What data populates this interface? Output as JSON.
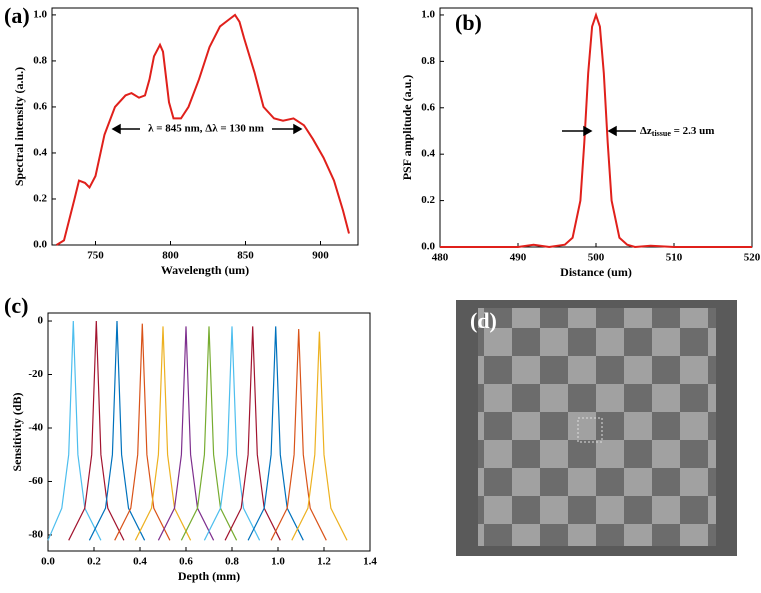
{
  "chart_data": [
    {
      "type": "line",
      "label": "(a)",
      "xlabel": "Wavelength (um)",
      "ylabel": "Spectral intensity (a.u.)",
      "color": "#e0201b",
      "annotation": "λ = 845 nm, Δλ = 130 nm",
      "x": [
        724,
        729,
        736,
        739,
        743,
        746,
        750,
        756,
        763,
        770,
        774,
        779,
        783,
        786,
        789,
        793,
        795,
        799,
        802,
        807,
        812,
        819,
        826,
        833,
        839,
        843,
        846,
        849,
        856,
        862,
        869,
        875,
        882,
        889,
        895,
        902,
        909,
        915,
        919
      ],
      "values": [
        0,
        0.02,
        0.2,
        0.28,
        0.27,
        0.25,
        0.3,
        0.48,
        0.6,
        0.65,
        0.66,
        0.64,
        0.65,
        0.72,
        0.82,
        0.87,
        0.84,
        0.62,
        0.55,
        0.55,
        0.6,
        0.72,
        0.86,
        0.95,
        0.98,
        1.0,
        0.97,
        0.9,
        0.75,
        0.6,
        0.55,
        0.54,
        0.55,
        0.52,
        0.46,
        0.38,
        0.28,
        0.15,
        0.05
      ],
      "xlim": [
        721,
        925
      ],
      "ylim": [
        0,
        1.03
      ],
      "xticks": [
        750,
        800,
        850,
        900
      ],
      "yticks": [
        {
          "value": 0,
          "label": "0.0"
        },
        0.2,
        0.4,
        0.6,
        0.8,
        {
          "value": 1,
          "label": "1.0"
        }
      ]
    },
    {
      "type": "line",
      "label": "(b)",
      "xlabel": "Distance (um)",
      "ylabel": "PSF amplitude (a.u.)",
      "color": "#e0201b",
      "annotation": [
        "Δz",
        "tissue",
        " = 2.3 um"
      ],
      "x": [
        480,
        490,
        492,
        494,
        496,
        497,
        498,
        498.5,
        499,
        499.5,
        500,
        500.5,
        501,
        501.5,
        502,
        503,
        504,
        505,
        507,
        510,
        520
      ],
      "values": [
        0,
        0,
        0.01,
        0,
        0.01,
        0.04,
        0.2,
        0.45,
        0.75,
        0.95,
        1.0,
        0.95,
        0.75,
        0.45,
        0.2,
        0.04,
        0.01,
        0,
        0.005,
        0,
        0
      ],
      "xlim": [
        480,
        520
      ],
      "ylim": [
        0,
        1.03
      ],
      "xticks": [
        480,
        490,
        500,
        510,
        520
      ],
      "yticks": [
        {
          "value": 0,
          "label": "0.0"
        },
        0.2,
        0.4,
        0.6,
        0.8,
        {
          "value": 1,
          "label": "1.0"
        }
      ]
    },
    {
      "type": "line",
      "label": "(c)",
      "xlabel": "Depth (mm)",
      "ylabel": "Sensitivity (dB)",
      "xlim": [
        0,
        1.4
      ],
      "ylim": [
        -86,
        3
      ],
      "xticks": [
        {
          "value": 0,
          "label": "0.0"
        },
        0.2,
        0.4,
        0.6,
        0.8,
        {
          "value": 1,
          "label": "1.0"
        },
        1.2,
        1.4
      ],
      "yticks": [
        0,
        -20,
        -40,
        -60,
        -80
      ],
      "series": [
        {
          "color": "#4dbeee",
          "x": [
            0.0,
            0.06,
            0.09,
            0.11,
            0.13,
            0.16,
            0.23
          ],
          "values": [
            -82,
            -70,
            -50,
            0,
            -50,
            -70,
            -82
          ]
        },
        {
          "color": "#a2142f",
          "x": [
            0.09,
            0.16,
            0.19,
            0.21,
            0.23,
            0.26,
            0.33
          ],
          "values": [
            -82,
            -70,
            -50,
            0,
            -50,
            -70,
            -82
          ]
        },
        {
          "color": "#0072bd",
          "x": [
            0.18,
            0.25,
            0.28,
            0.3,
            0.32,
            0.35,
            0.42
          ],
          "values": [
            -82,
            -70,
            -50,
            0,
            -50,
            -70,
            -82
          ]
        },
        {
          "color": "#d95319",
          "x": [
            0.29,
            0.36,
            0.39,
            0.41,
            0.43,
            0.46,
            0.53
          ],
          "values": [
            -82,
            -70,
            -50,
            -1,
            -50,
            -70,
            -82
          ]
        },
        {
          "color": "#edb120",
          "x": [
            0.38,
            0.45,
            0.48,
            0.5,
            0.52,
            0.55,
            0.62
          ],
          "values": [
            -82,
            -70,
            -50,
            -2,
            -50,
            -70,
            -82
          ]
        },
        {
          "color": "#7e2f8e",
          "x": [
            0.48,
            0.55,
            0.58,
            0.6,
            0.62,
            0.65,
            0.72
          ],
          "values": [
            -82,
            -70,
            -50,
            -2,
            -50,
            -70,
            -82
          ]
        },
        {
          "color": "#77ac30",
          "x": [
            0.58,
            0.65,
            0.68,
            0.7,
            0.72,
            0.75,
            0.82
          ],
          "values": [
            -82,
            -70,
            -50,
            -2,
            -50,
            -70,
            -82
          ]
        },
        {
          "color": "#4dbeee",
          "x": [
            0.68,
            0.75,
            0.78,
            0.8,
            0.82,
            0.85,
            0.92
          ],
          "values": [
            -82,
            -70,
            -50,
            -2,
            -50,
            -70,
            -82
          ]
        },
        {
          "color": "#a2142f",
          "x": [
            0.77,
            0.84,
            0.87,
            0.89,
            0.91,
            0.94,
            1.01
          ],
          "values": [
            -82,
            -70,
            -50,
            -2,
            -50,
            -70,
            -82
          ]
        },
        {
          "color": "#0072bd",
          "x": [
            0.87,
            0.94,
            0.97,
            0.99,
            1.01,
            1.04,
            1.11
          ],
          "values": [
            -82,
            -70,
            -50,
            -2,
            -50,
            -70,
            -82
          ]
        },
        {
          "color": "#d95319",
          "x": [
            0.97,
            1.04,
            1.07,
            1.09,
            1.11,
            1.14,
            1.21
          ],
          "values": [
            -82,
            -70,
            -50,
            -3,
            -50,
            -70,
            -82
          ]
        },
        {
          "color": "#edb120",
          "x": [
            1.06,
            1.13,
            1.16,
            1.18,
            1.2,
            1.23,
            1.3
          ],
          "values": [
            -82,
            -70,
            -50,
            -4,
            -50,
            -70,
            -82
          ]
        }
      ]
    },
    {
      "type": "image",
      "label": "(d)"
    }
  ]
}
